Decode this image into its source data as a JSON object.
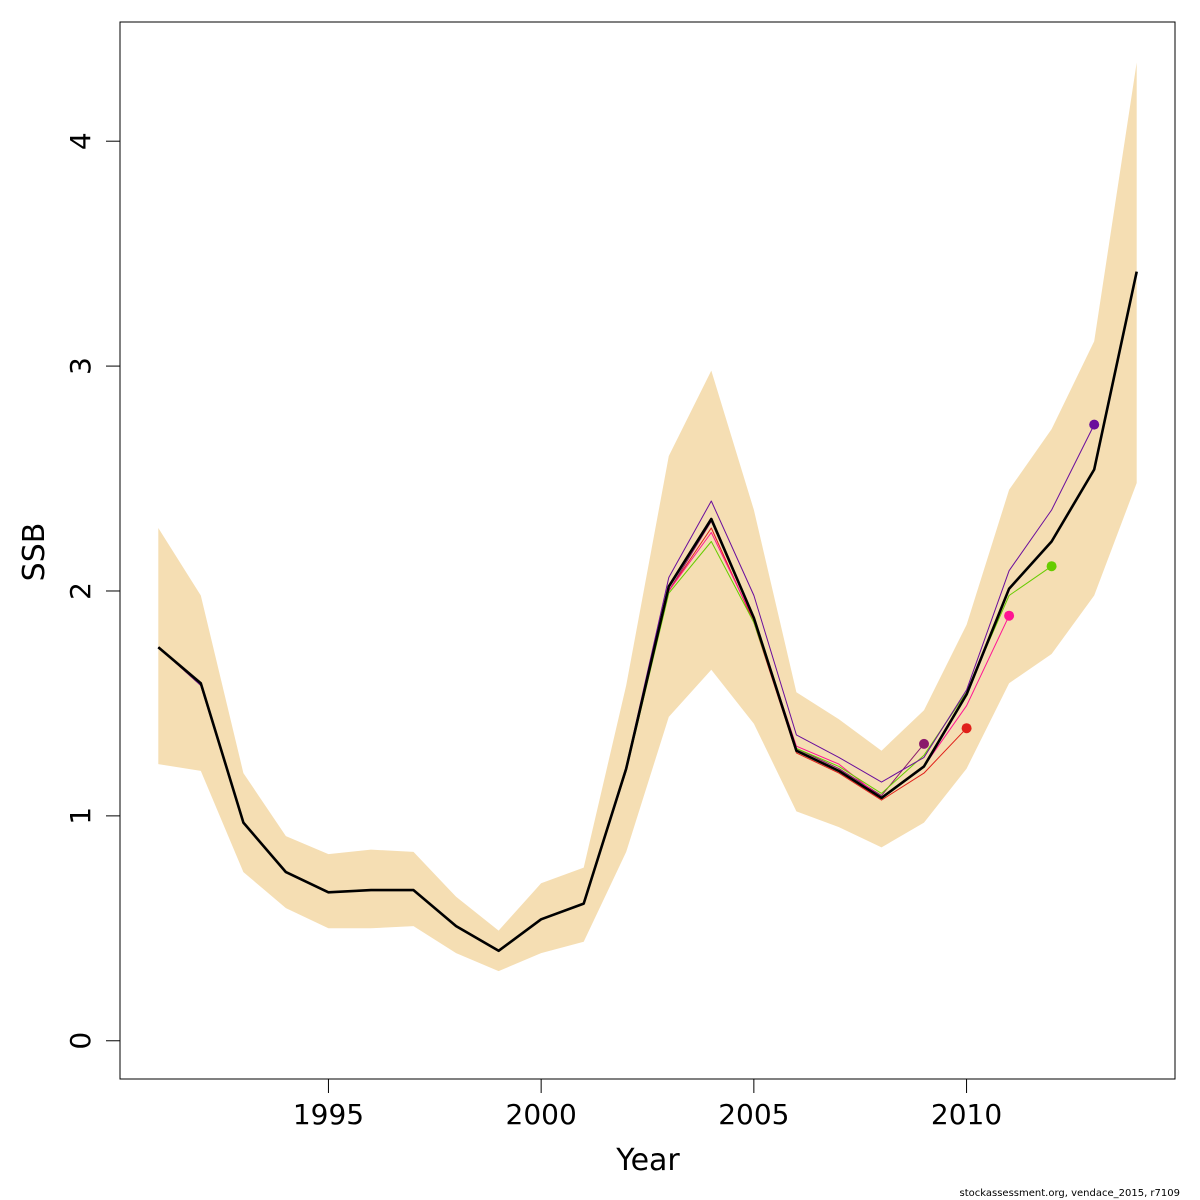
{
  "chart_data": {
    "type": "line",
    "xlabel": "Year",
    "ylabel": "SSB",
    "xlim": [
      1990.1,
      2014.9
    ],
    "ylim": [
      -0.17,
      4.53
    ],
    "x_ticks": [
      1995,
      2000,
      2005,
      2010
    ],
    "y_ticks": [
      0,
      1,
      2,
      3,
      4
    ],
    "grid": false,
    "legend": "none",
    "colors": {
      "band": "#f5deb3",
      "main": "#000000",
      "retro_1": "#8b1a6b",
      "retro_2": "#e0201a",
      "retro_3": "#ff1493",
      "retro_4": "#66cc00",
      "retro_5": "#6a0d9c"
    },
    "confidence_band": {
      "x": [
        1991,
        1992,
        1993,
        1994,
        1995,
        1996,
        1997,
        1998,
        1999,
        2000,
        2001,
        2002,
        2003,
        2004,
        2005,
        2006,
        2007,
        2008,
        2009,
        2010,
        2011,
        2012,
        2013,
        2014
      ],
      "lower": [
        1.23,
        1.2,
        0.75,
        0.59,
        0.5,
        0.5,
        0.51,
        0.39,
        0.31,
        0.39,
        0.44,
        0.84,
        1.44,
        1.65,
        1.41,
        1.02,
        0.95,
        0.86,
        0.97,
        1.21,
        1.59,
        1.72,
        1.98,
        2.48
      ],
      "upper": [
        2.28,
        1.98,
        1.19,
        0.91,
        0.83,
        0.85,
        0.84,
        0.64,
        0.49,
        0.7,
        0.77,
        1.58,
        2.6,
        2.98,
        2.36,
        1.55,
        1.43,
        1.29,
        1.47,
        1.85,
        2.45,
        2.72,
        3.11,
        4.35
      ]
    },
    "series": [
      {
        "x": [
          1991,
          1992,
          1993,
          1994,
          1995,
          1996,
          1997,
          1998,
          1999,
          2000,
          2001,
          2002,
          2003,
          2004,
          2005,
          2006,
          2007,
          2008,
          2009,
          2010,
          2011,
          2012,
          2013,
          2014
        ],
        "values": [
          1.75,
          1.59,
          0.97,
          0.75,
          0.66,
          0.67,
          0.67,
          0.51,
          0.4,
          0.54,
          0.61,
          1.21,
          2.02,
          2.32,
          1.88,
          1.29,
          1.2,
          1.08,
          1.22,
          1.54,
          2.01,
          2.22,
          2.54,
          3.42
        ]
      },
      {
        "x": [
          1991,
          1992,
          1993,
          1994,
          1995,
          1996,
          1997,
          1998,
          1999,
          2000,
          2001,
          2002,
          2003,
          2004,
          2005,
          2006,
          2007,
          2008,
          2009
        ],
        "values": [
          1.75,
          1.58,
          0.97,
          0.75,
          0.66,
          0.67,
          0.67,
          0.51,
          0.4,
          0.54,
          0.61,
          1.21,
          2.0,
          2.31,
          1.88,
          1.3,
          1.21,
          1.09,
          1.32
        ]
      },
      {
        "x": [
          1991,
          1992,
          1993,
          1994,
          1995,
          1996,
          1997,
          1998,
          1999,
          2000,
          2001,
          2002,
          2003,
          2004,
          2005,
          2006,
          2007,
          2008,
          2009,
          2010
        ],
        "values": [
          1.75,
          1.58,
          0.97,
          0.75,
          0.66,
          0.67,
          0.67,
          0.51,
          0.4,
          0.54,
          0.61,
          1.2,
          2.0,
          2.28,
          1.86,
          1.28,
          1.19,
          1.07,
          1.19,
          1.39
        ]
      },
      {
        "x": [
          1991,
          1992,
          1993,
          1994,
          1995,
          1996,
          1997,
          1998,
          1999,
          2000,
          2001,
          2002,
          2003,
          2004,
          2005,
          2006,
          2007,
          2008,
          2009,
          2010,
          2011
        ],
        "values": [
          1.75,
          1.58,
          0.97,
          0.75,
          0.66,
          0.67,
          0.67,
          0.51,
          0.4,
          0.54,
          0.61,
          1.2,
          2.0,
          2.26,
          1.87,
          1.31,
          1.23,
          1.08,
          1.22,
          1.49,
          1.89
        ]
      },
      {
        "x": [
          1991,
          1992,
          1993,
          1994,
          1995,
          1996,
          1997,
          1998,
          1999,
          2000,
          2001,
          2002,
          2003,
          2004,
          2005,
          2006,
          2007,
          2008,
          2009,
          2010,
          2011,
          2012
        ],
        "values": [
          1.75,
          1.58,
          0.97,
          0.75,
          0.66,
          0.67,
          0.67,
          0.51,
          0.4,
          0.54,
          0.61,
          1.2,
          1.99,
          2.22,
          1.86,
          1.3,
          1.22,
          1.1,
          1.27,
          1.55,
          1.98,
          2.11
        ]
      },
      {
        "x": [
          1991,
          1992,
          1993,
          1994,
          1995,
          1996,
          1997,
          1998,
          1999,
          2000,
          2001,
          2002,
          2003,
          2004,
          2005,
          2006,
          2007,
          2008,
          2009,
          2010,
          2011,
          2012,
          2013
        ],
        "values": [
          1.75,
          1.58,
          0.97,
          0.75,
          0.66,
          0.67,
          0.67,
          0.51,
          0.4,
          0.54,
          0.61,
          1.22,
          2.06,
          2.4,
          1.98,
          1.36,
          1.26,
          1.15,
          1.26,
          1.56,
          2.09,
          2.36,
          2.74
        ]
      }
    ],
    "credit": "stockassessment.org, vendace_2015, r7109"
  }
}
